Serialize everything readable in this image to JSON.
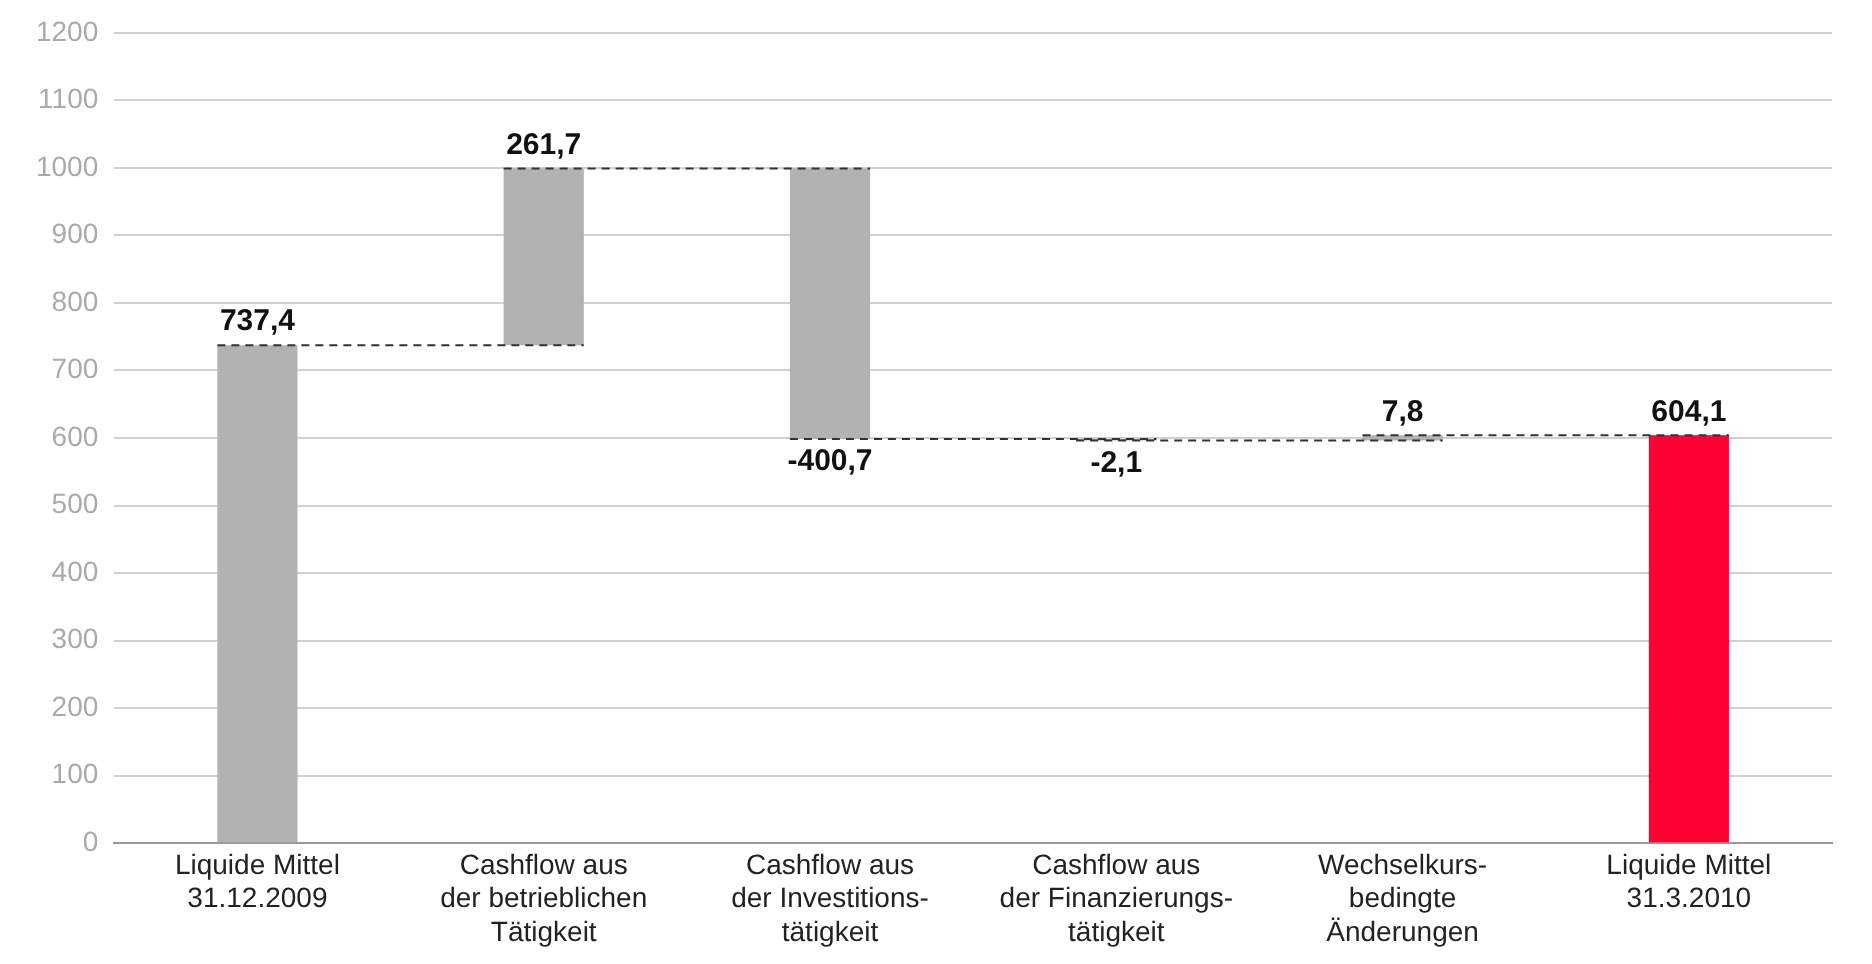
{
  "chart_data": {
    "type": "bar",
    "categories": [
      "Liquide Mittel\n31.12.2009",
      "Cashflow aus\nder betrieblichen\nTätigkeit",
      "Cashflow aus\nder Investitions-\ntätigkeit",
      "Cashflow aus\nder Finanzierungs-\ntätigkeit",
      "Wechselkurs-\nbedingte\nÄnderungen",
      "Liquide Mittel\n31.3.2010"
    ],
    "values": [
      737.4,
      261.7,
      -400.7,
      -2.1,
      7.8,
      604.1
    ],
    "base": [
      0,
      737.4,
      999.1,
      598.4,
      596.3,
      0
    ],
    "colors": [
      "#b2b2b2",
      "#b2b2b2",
      "#b2b2b2",
      "#b2b2b2",
      "#b2b2b2",
      "#ff0033"
    ],
    "value_labels": [
      "737,4",
      "261,7",
      "-400,7",
      "-2,1",
      "7,8",
      "604,1"
    ],
    "ylim": [
      0,
      1200
    ],
    "yticks": [
      0,
      100,
      200,
      300,
      400,
      500,
      600,
      700,
      800,
      900,
      1000,
      1100,
      1200
    ],
    "grid": "y",
    "legend": false
  }
}
